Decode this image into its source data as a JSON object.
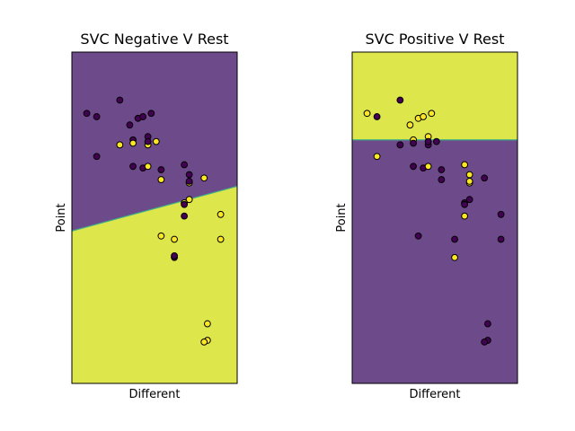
{
  "colors": {
    "purple": "#6d4a8a",
    "yellow": "#dde64a",
    "boundary": "#3fb08a",
    "point_dark": "#440154",
    "point_light": "#fde725",
    "frame": "#000000"
  },
  "chart_data": [
    {
      "type": "scatter",
      "title": "SVC Negative V Rest",
      "xlabel": "Different",
      "ylabel": "Point",
      "xlim": [
        0,
        10
      ],
      "ylim": [
        0,
        20
      ],
      "grid": false,
      "ticks": false,
      "decision_boundary": {
        "x": [
          0,
          10
        ],
        "y": [
          9.2,
          11.9
        ]
      },
      "region_colors": {
        "upper": "purple",
        "lower": "yellow"
      },
      "points": [
        {
          "x": 2.9,
          "y": 17.1,
          "cls": 0
        },
        {
          "x": 0.9,
          "y": 16.3,
          "cls": 0
        },
        {
          "x": 1.5,
          "y": 16.1,
          "cls": 0
        },
        {
          "x": 4.0,
          "y": 16.0,
          "cls": 0
        },
        {
          "x": 4.3,
          "y": 16.1,
          "cls": 0
        },
        {
          "x": 4.8,
          "y": 16.3,
          "cls": 0
        },
        {
          "x": 3.5,
          "y": 15.6,
          "cls": 0
        },
        {
          "x": 4.6,
          "y": 14.9,
          "cls": 0
        },
        {
          "x": 3.7,
          "y": 14.7,
          "cls": 0
        },
        {
          "x": 2.9,
          "y": 14.4,
          "cls": 1
        },
        {
          "x": 3.7,
          "y": 14.5,
          "cls": 1
        },
        {
          "x": 4.6,
          "y": 14.4,
          "cls": 1
        },
        {
          "x": 5.1,
          "y": 14.6,
          "cls": 1
        },
        {
          "x": 4.6,
          "y": 14.6,
          "cls": 0
        },
        {
          "x": 1.5,
          "y": 13.7,
          "cls": 0
        },
        {
          "x": 3.7,
          "y": 13.1,
          "cls": 0
        },
        {
          "x": 4.3,
          "y": 13.0,
          "cls": 0
        },
        {
          "x": 4.6,
          "y": 13.1,
          "cls": 1
        },
        {
          "x": 5.4,
          "y": 12.9,
          "cls": 0
        },
        {
          "x": 6.8,
          "y": 13.2,
          "cls": 0
        },
        {
          "x": 7.1,
          "y": 12.6,
          "cls": 0
        },
        {
          "x": 8.0,
          "y": 12.4,
          "cls": 1
        },
        {
          "x": 5.4,
          "y": 12.3,
          "cls": 1
        },
        {
          "x": 7.1,
          "y": 12.1,
          "cls": 1
        },
        {
          "x": 7.1,
          "y": 12.2,
          "cls": 0
        },
        {
          "x": 7.1,
          "y": 11.1,
          "cls": 1
        },
        {
          "x": 6.8,
          "y": 10.9,
          "cls": 1
        },
        {
          "x": 6.8,
          "y": 10.8,
          "cls": 0
        },
        {
          "x": 9.0,
          "y": 10.2,
          "cls": 1
        },
        {
          "x": 6.8,
          "y": 10.1,
          "cls": 0
        },
        {
          "x": 5.4,
          "y": 8.9,
          "cls": 1
        },
        {
          "x": 6.2,
          "y": 8.7,
          "cls": 1
        },
        {
          "x": 9.0,
          "y": 8.7,
          "cls": 1
        },
        {
          "x": 6.2,
          "y": 7.6,
          "cls": 0
        },
        {
          "x": 6.2,
          "y": 7.7,
          "cls": 0
        },
        {
          "x": 8.2,
          "y": 3.6,
          "cls": 1
        },
        {
          "x": 8.2,
          "y": 2.6,
          "cls": 1
        },
        {
          "x": 8.0,
          "y": 2.5,
          "cls": 1
        }
      ]
    },
    {
      "type": "scatter",
      "title": "SVC Positive V Rest",
      "xlabel": "Different",
      "ylabel": "Point",
      "xlim": [
        0,
        10
      ],
      "ylim": [
        0,
        20
      ],
      "grid": false,
      "ticks": false,
      "decision_boundary": {
        "x": [
          0,
          10
        ],
        "y": [
          14.7,
          14.7
        ]
      },
      "region_colors": {
        "upper": "yellow",
        "lower": "purple"
      },
      "points": [
        {
          "x": 2.9,
          "y": 17.1,
          "cls": 0
        },
        {
          "x": 0.9,
          "y": 16.3,
          "cls": 1
        },
        {
          "x": 1.5,
          "y": 16.1,
          "cls": 0
        },
        {
          "x": 4.0,
          "y": 16.0,
          "cls": 1
        },
        {
          "x": 4.3,
          "y": 16.1,
          "cls": 1
        },
        {
          "x": 4.8,
          "y": 16.3,
          "cls": 1
        },
        {
          "x": 3.5,
          "y": 15.6,
          "cls": 1
        },
        {
          "x": 4.6,
          "y": 14.9,
          "cls": 1
        },
        {
          "x": 3.7,
          "y": 14.7,
          "cls": 1
        },
        {
          "x": 2.9,
          "y": 14.4,
          "cls": 0
        },
        {
          "x": 3.7,
          "y": 14.5,
          "cls": 0
        },
        {
          "x": 4.6,
          "y": 14.4,
          "cls": 0
        },
        {
          "x": 5.1,
          "y": 14.6,
          "cls": 0
        },
        {
          "x": 4.6,
          "y": 14.6,
          "cls": 0
        },
        {
          "x": 1.5,
          "y": 13.7,
          "cls": 1
        },
        {
          "x": 3.7,
          "y": 13.1,
          "cls": 0
        },
        {
          "x": 4.3,
          "y": 13.0,
          "cls": 0
        },
        {
          "x": 4.6,
          "y": 13.1,
          "cls": 1
        },
        {
          "x": 5.4,
          "y": 12.9,
          "cls": 0
        },
        {
          "x": 6.8,
          "y": 13.2,
          "cls": 1
        },
        {
          "x": 7.1,
          "y": 12.6,
          "cls": 1
        },
        {
          "x": 8.0,
          "y": 12.4,
          "cls": 0
        },
        {
          "x": 5.4,
          "y": 12.3,
          "cls": 0
        },
        {
          "x": 7.1,
          "y": 12.1,
          "cls": 1
        },
        {
          "x": 7.1,
          "y": 12.2,
          "cls": 1
        },
        {
          "x": 7.1,
          "y": 11.1,
          "cls": 0
        },
        {
          "x": 6.8,
          "y": 10.9,
          "cls": 0
        },
        {
          "x": 6.8,
          "y": 10.8,
          "cls": 0
        },
        {
          "x": 9.0,
          "y": 10.2,
          "cls": 0
        },
        {
          "x": 6.8,
          "y": 10.1,
          "cls": 1
        },
        {
          "x": 4.0,
          "y": 8.9,
          "cls": 0
        },
        {
          "x": 6.2,
          "y": 8.7,
          "cls": 0
        },
        {
          "x": 9.0,
          "y": 8.7,
          "cls": 0
        },
        {
          "x": 6.2,
          "y": 7.6,
          "cls": 1
        },
        {
          "x": 8.2,
          "y": 3.6,
          "cls": 0
        },
        {
          "x": 8.2,
          "y": 2.6,
          "cls": 0
        },
        {
          "x": 8.0,
          "y": 2.5,
          "cls": 0
        }
      ]
    }
  ]
}
